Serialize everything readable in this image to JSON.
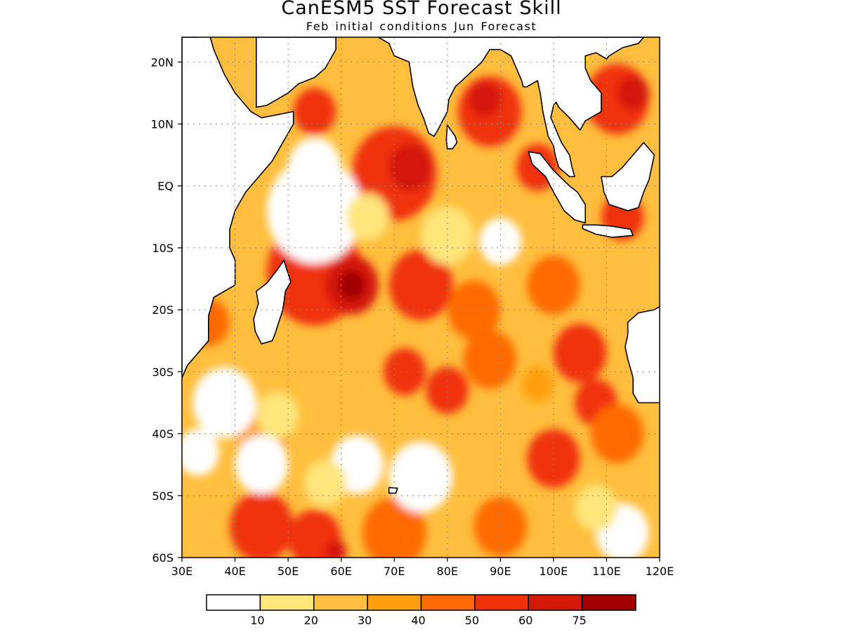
{
  "title": "CanESM5 SST Forecast Skill",
  "subtitle": "Feb initial conditions  Jun Forecast",
  "map": {
    "lon_range": [
      30,
      120
    ],
    "lat_range": [
      -60,
      24
    ],
    "lon_ticks": [
      {
        "value": 30,
        "label": "30E"
      },
      {
        "value": 40,
        "label": "40E"
      },
      {
        "value": 50,
        "label": "50E"
      },
      {
        "value": 60,
        "label": "60E"
      },
      {
        "value": 70,
        "label": "70E"
      },
      {
        "value": 80,
        "label": "80E"
      },
      {
        "value": 90,
        "label": "90E"
      },
      {
        "value": 100,
        "label": "100E"
      },
      {
        "value": 110,
        "label": "110E"
      },
      {
        "value": 120,
        "label": "120E"
      }
    ],
    "lat_ticks": [
      {
        "value": 20,
        "label": "20N"
      },
      {
        "value": 10,
        "label": "10N"
      },
      {
        "value": 0,
        "label": "EQ"
      },
      {
        "value": -10,
        "label": "10S"
      },
      {
        "value": -20,
        "label": "20S"
      },
      {
        "value": -30,
        "label": "30S"
      },
      {
        "value": -40,
        "label": "40S"
      },
      {
        "value": -50,
        "label": "50S"
      },
      {
        "value": -60,
        "label": "60S"
      }
    ],
    "grid": true
  },
  "colorbar": {
    "colors": [
      "#ffffff",
      "#ffe57a",
      "#ffbe3d",
      "#ff9f0e",
      "#ff6a02",
      "#f0300a",
      "#d41808",
      "#a00000"
    ],
    "labels": [
      "10",
      "20",
      "30",
      "40",
      "50",
      "60",
      "75"
    ]
  },
  "skill_field": {
    "background_level": 2,
    "blobs": [
      {
        "lon": 55,
        "lat": 12,
        "r": 4,
        "level": 5
      },
      {
        "lon": 70,
        "lat": 2,
        "r": 8,
        "level": 5
      },
      {
        "lon": 73,
        "lat": 3,
        "r": 4,
        "level": 6
      },
      {
        "lon": 88,
        "lat": 12,
        "r": 6,
        "level": 5
      },
      {
        "lon": 87,
        "lat": 14,
        "r": 3,
        "level": 6
      },
      {
        "lon": 97,
        "lat": 3,
        "r": 4,
        "level": 5
      },
      {
        "lon": 112,
        "lat": 14,
        "r": 6,
        "level": 5
      },
      {
        "lon": 115,
        "lat": 15,
        "r": 3,
        "level": 6
      },
      {
        "lon": 113,
        "lat": -5,
        "r": 4,
        "level": 5
      },
      {
        "lon": 55,
        "lat": -14,
        "r": 9,
        "level": 5
      },
      {
        "lon": 62,
        "lat": -16,
        "r": 5,
        "level": 6
      },
      {
        "lon": 62,
        "lat": -16,
        "r": 2.5,
        "level": 7
      },
      {
        "lon": 75,
        "lat": -16,
        "r": 6,
        "level": 5
      },
      {
        "lon": 85,
        "lat": -20,
        "r": 5,
        "level": 4
      },
      {
        "lon": 100,
        "lat": -16,
        "r": 5,
        "level": 4
      },
      {
        "lon": 105,
        "lat": -27,
        "r": 5,
        "level": 5
      },
      {
        "lon": 108,
        "lat": -35,
        "r": 4,
        "level": 5
      },
      {
        "lon": 72,
        "lat": -30,
        "r": 4,
        "level": 5
      },
      {
        "lon": 80,
        "lat": -33,
        "r": 4,
        "level": 5
      },
      {
        "lon": 88,
        "lat": -28,
        "r": 5,
        "level": 4
      },
      {
        "lon": 100,
        "lat": -44,
        "r": 5,
        "level": 5
      },
      {
        "lon": 112,
        "lat": -40,
        "r": 5,
        "level": 4
      },
      {
        "lon": 45,
        "lat": -55,
        "r": 6,
        "level": 5
      },
      {
        "lon": 55,
        "lat": -57,
        "r": 5,
        "level": 5
      },
      {
        "lon": 59,
        "lat": -59,
        "r": 2,
        "level": 6
      },
      {
        "lon": 70,
        "lat": -56,
        "r": 6,
        "level": 4
      },
      {
        "lon": 90,
        "lat": -55,
        "r": 5,
        "level": 4
      },
      {
        "lon": 35,
        "lat": -22,
        "r": 4,
        "level": 4
      },
      {
        "lon": 45,
        "lat": -40,
        "r": 5,
        "level": 3
      },
      {
        "lon": 55,
        "lat": -4,
        "r": 9,
        "level": 0
      },
      {
        "lon": 55,
        "lat": 3,
        "r": 5,
        "level": 0
      },
      {
        "lon": 65,
        "lat": -5,
        "r": 4,
        "level": 1
      },
      {
        "lon": 80,
        "lat": -8,
        "r": 5,
        "level": 1
      },
      {
        "lon": 90,
        "lat": -9,
        "r": 4,
        "level": 0
      },
      {
        "lon": 38,
        "lat": -35,
        "r": 6,
        "level": 0
      },
      {
        "lon": 48,
        "lat": -37,
        "r": 4,
        "level": 1
      },
      {
        "lon": 45,
        "lat": -45,
        "r": 5,
        "level": 0
      },
      {
        "lon": 33,
        "lat": -43,
        "r": 4,
        "level": 0
      },
      {
        "lon": 75,
        "lat": -47,
        "r": 6,
        "level": 0
      },
      {
        "lon": 63,
        "lat": -45,
        "r": 5,
        "level": 0
      },
      {
        "lon": 57,
        "lat": -48,
        "r": 4,
        "level": 1
      },
      {
        "lon": 113,
        "lat": -56,
        "r": 5,
        "level": 0
      },
      {
        "lon": 108,
        "lat": -52,
        "r": 4,
        "level": 1
      },
      {
        "lon": 97,
        "lat": -32,
        "r": 3,
        "level": 3
      },
      {
        "lon": 68,
        "lat": -38,
        "r": 3,
        "level": 2
      }
    ]
  }
}
